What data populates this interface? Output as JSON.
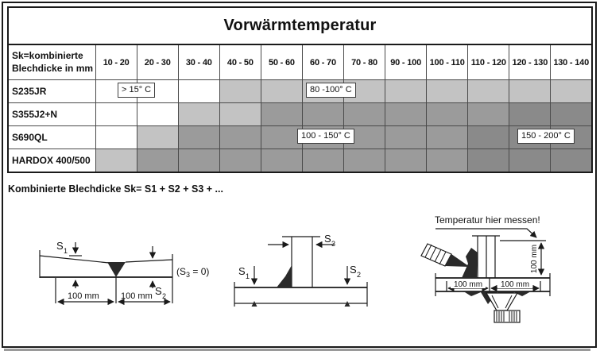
{
  "title": "Vorwärmtemperatur",
  "table": {
    "corner": {
      "line1": "Sk=kombinierte",
      "line2": "Blechdicke in mm"
    },
    "columns": [
      "10 - 20",
      "20 - 30",
      "30 - 40",
      "40 - 50",
      "50 - 60",
      "60 - 70",
      "70 - 80",
      "90 - 100",
      "100 - 110",
      "110 - 120",
      "120 - 130",
      "130 - 140"
    ],
    "rows": [
      {
        "label": "S235JR",
        "cells": [
          "w",
          "w",
          "w",
          "l",
          "l",
          "l",
          "l",
          "l",
          "l",
          "l",
          "l",
          "l"
        ]
      },
      {
        "label": "S355J2+N",
        "cells": [
          "w",
          "w",
          "l",
          "l",
          "m",
          "m",
          "m",
          "m",
          "m",
          "m",
          "d",
          "d"
        ]
      },
      {
        "label": "S690QL",
        "cells": [
          "w",
          "l",
          "m",
          "m",
          "m",
          "m",
          "m",
          "m",
          "m",
          "d",
          "d",
          "d"
        ]
      },
      {
        "label": "HARDOX 400/500",
        "cells": [
          "l",
          "m",
          "m",
          "m",
          "m",
          "m",
          "m",
          "m",
          "m",
          "d",
          "d",
          "d"
        ]
      }
    ],
    "annotations": [
      {
        "text": "> 15° C"
      },
      {
        "text": "80 -100° C"
      },
      {
        "text": "100 - 150° C"
      },
      {
        "text": "150 - 200° C"
      }
    ]
  },
  "formula": "Kombinierte Blechdicke Sk= S1 + S2 + S3 + ...",
  "diagrams": {
    "butt_joint": {
      "s1_base": "S",
      "s1_sub": "1",
      "s2_base": "S",
      "s2_sub": "2",
      "note_pre": "(S",
      "note_sub": "3",
      "note_post": " = 0)",
      "dim_left": "100 mm",
      "dim_right": "100 mm"
    },
    "t_joint": {
      "s1_base": "S",
      "s1_sub": "1",
      "s2_base": "S",
      "s2_sub": "2",
      "s3_base": "S",
      "s3_sub": "3"
    },
    "measure": {
      "caption": "Temperatur hier messen!",
      "dim_left": "100 mm",
      "dim_right": "100 mm",
      "dim_vertical": "100 mm"
    }
  },
  "colors": {
    "shade_light": "#c3c3c3",
    "shade_medium": "#9b9b9b",
    "shade_dark": "#8a8a8a",
    "grid_line": "#4a4a4a",
    "border": "#1a1a1a"
  }
}
